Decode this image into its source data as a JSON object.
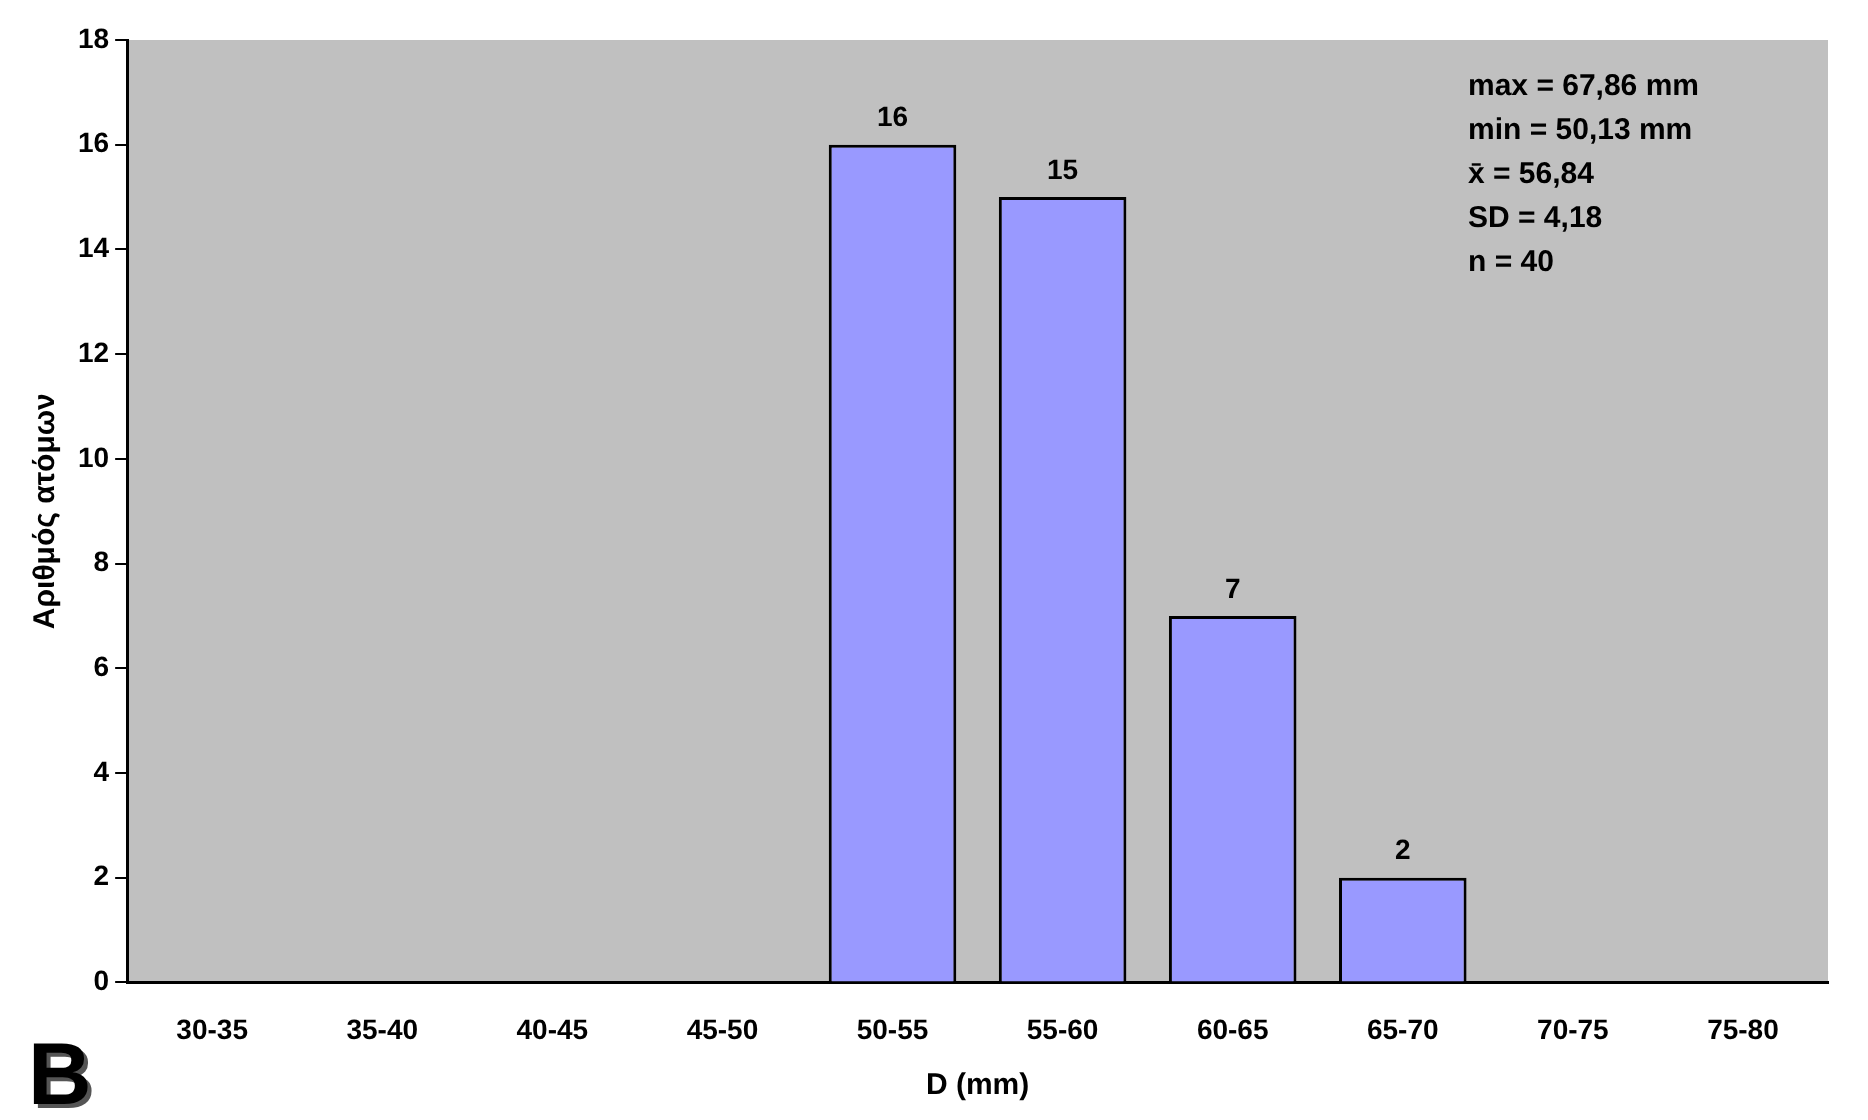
{
  "chart_data": {
    "type": "bar",
    "xlabel": "D (mm)",
    "ylabel": "Αριθμός ατόμων",
    "categories": [
      "30-35",
      "35-40",
      "40-45",
      "45-50",
      "50-55",
      "55-60",
      "60-65",
      "65-70",
      "70-75",
      "75-80"
    ],
    "values": [
      0,
      0,
      0,
      0,
      16,
      15,
      7,
      2,
      0,
      0
    ],
    "value_labels": [
      null,
      null,
      null,
      null,
      "16",
      "15",
      "7",
      "2",
      null,
      null
    ],
    "color": "#9999ff",
    "ylim": [
      0,
      18
    ],
    "yticks": [
      0,
      2,
      4,
      6,
      8,
      10,
      12,
      14,
      16,
      18
    ],
    "grid": false,
    "legend": false,
    "annotations": [
      "max = 67,86 mm",
      "min = 50,13 mm",
      "x̄ = 56,84",
      "SD = 4,18",
      "n = 40",
      "B"
    ]
  }
}
